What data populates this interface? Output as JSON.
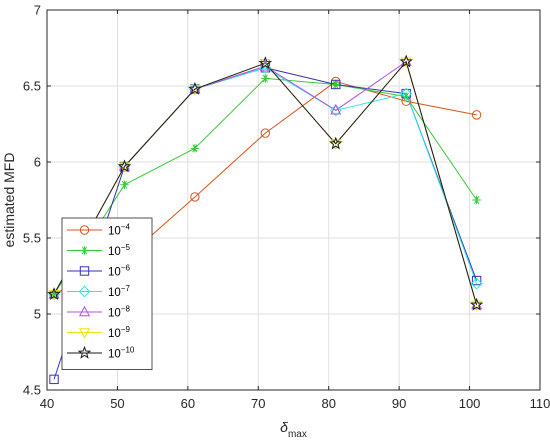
{
  "chart_data": {
    "type": "line",
    "x_label_base": "δ",
    "x_label_sub": "max",
    "ylabel": "estimated MFD",
    "xlim": [
      40,
      110
    ],
    "ylim": [
      4.5,
      7
    ],
    "x_ticks": [
      40,
      50,
      60,
      70,
      80,
      90,
      100,
      110
    ],
    "y_ticks": [
      4.5,
      5,
      5.5,
      6,
      6.5,
      7
    ],
    "x_tick_labels": [
      "40",
      "50",
      "60",
      "70",
      "80",
      "90",
      "100",
      "110"
    ],
    "y_tick_labels": [
      "4.5",
      "5",
      "5.5",
      "6",
      "6.5",
      "7"
    ],
    "grid": true,
    "legend_position": "bottom-left",
    "series": [
      {
        "name_base": "10",
        "name_exp": "−4",
        "color": "#D95319",
        "marker": "circle",
        "x": [
          41,
          51,
          61,
          71,
          81,
          91,
          101
        ],
        "y": [
          5.13,
          5.36,
          5.77,
          6.19,
          6.53,
          6.4,
          6.31
        ]
      },
      {
        "name_base": "10",
        "name_exp": "−5",
        "color": "#33CC33",
        "marker": "asterisk",
        "x": [
          41,
          51,
          61,
          71,
          81,
          91,
          101
        ],
        "y": [
          5.13,
          5.85,
          6.09,
          6.55,
          6.51,
          6.43,
          5.75
        ]
      },
      {
        "name_base": "10",
        "name_exp": "−6",
        "color": "#3333B3",
        "marker": "square",
        "x": [
          41,
          51,
          61,
          71,
          81,
          91,
          101
        ],
        "y": [
          4.57,
          5.97,
          6.48,
          6.62,
          6.51,
          6.45,
          5.22
        ]
      },
      {
        "name_base": "10",
        "name_exp": "−7",
        "color": "#33E6E6",
        "marker": "diamond",
        "x": [
          41,
          51,
          61,
          71,
          81,
          91,
          101
        ],
        "y": [
          5.13,
          5.97,
          6.48,
          6.62,
          6.34,
          6.45,
          5.2
        ]
      },
      {
        "name_base": "10",
        "name_exp": "−8",
        "color": "#B34DE6",
        "marker": "triangle-up",
        "x": [
          41,
          51,
          61,
          71,
          81,
          91,
          101
        ],
        "y": [
          5.13,
          5.97,
          6.48,
          6.63,
          6.34,
          6.66,
          5.06
        ]
      },
      {
        "name_base": "10",
        "name_exp": "−9",
        "color": "#E6E61A",
        "marker": "triangle-down",
        "x": [
          41,
          51,
          61,
          71,
          81,
          91,
          101
        ],
        "y": [
          5.13,
          5.97,
          6.48,
          6.65,
          6.12,
          6.66,
          5.06
        ]
      },
      {
        "name_base": "10",
        "name_exp": "−10",
        "color": "#1A1A1A",
        "marker": "star",
        "x": [
          41,
          51,
          61,
          71,
          81,
          91,
          101
        ],
        "y": [
          5.13,
          5.97,
          6.48,
          6.65,
          6.12,
          6.66,
          5.06
        ]
      }
    ]
  }
}
